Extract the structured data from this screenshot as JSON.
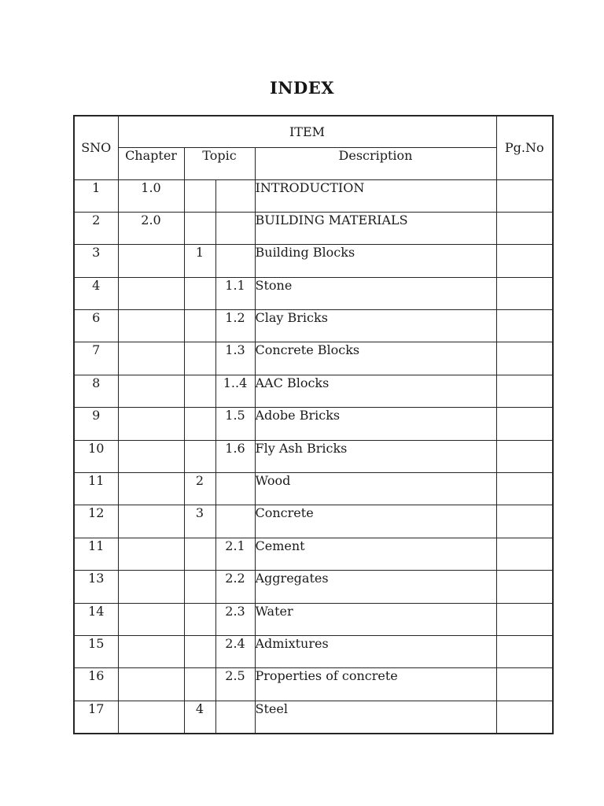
{
  "page": {
    "title": "INDEX"
  },
  "table": {
    "headers": {
      "sno": "SNO",
      "item": "ITEM",
      "chapter": "Chapter",
      "topic": "Topic",
      "description": "Description",
      "pgno": "Pg.No"
    },
    "rows": [
      {
        "sno": "1",
        "chapter": "1.0",
        "topic1": "",
        "topic2": "",
        "description": "INTRODUCTION",
        "pgno": ""
      },
      {
        "sno": "2",
        "chapter": "2.0",
        "topic1": "",
        "topic2": "",
        "description": "BUILDING MATERIALS",
        "pgno": ""
      },
      {
        "sno": "3",
        "chapter": "",
        "topic1": "1",
        "topic2": "",
        "description": "Building Blocks",
        "pgno": ""
      },
      {
        "sno": "4",
        "chapter": "",
        "topic1": "",
        "topic2": "1.1",
        "description": "Stone",
        "pgno": ""
      },
      {
        "sno": "6",
        "chapter": "",
        "topic1": "",
        "topic2": "1.2",
        "description": "Clay Bricks",
        "pgno": ""
      },
      {
        "sno": "7",
        "chapter": "",
        "topic1": "",
        "topic2": "1.3",
        "description": "Concrete Blocks",
        "pgno": ""
      },
      {
        "sno": "8",
        "chapter": "",
        "topic1": "",
        "topic2": "1..4",
        "description": "AAC Blocks",
        "pgno": ""
      },
      {
        "sno": "9",
        "chapter": "",
        "topic1": "",
        "topic2": "1.5",
        "description": "Adobe Bricks",
        "pgno": ""
      },
      {
        "sno": "10",
        "chapter": "",
        "topic1": "",
        "topic2": "1.6",
        "description": "Fly Ash Bricks",
        "pgno": ""
      },
      {
        "sno": "11",
        "chapter": "",
        "topic1": "2",
        "topic2": "",
        "description": "Wood",
        "pgno": ""
      },
      {
        "sno": "12",
        "chapter": "",
        "topic1": "3",
        "topic2": "",
        "description": "Concrete",
        "pgno": ""
      },
      {
        "sno": "11",
        "chapter": "",
        "topic1": "",
        "topic2": "2.1",
        "description": "Cement",
        "pgno": ""
      },
      {
        "sno": "13",
        "chapter": "",
        "topic1": "",
        "topic2": "2.2",
        "description": "Aggregates",
        "pgno": ""
      },
      {
        "sno": "14",
        "chapter": "",
        "topic1": "",
        "topic2": "2.3",
        "description": "Water",
        "pgno": ""
      },
      {
        "sno": "15",
        "chapter": "",
        "topic1": "",
        "topic2": "2.4",
        "description": "Admixtures",
        "pgno": ""
      },
      {
        "sno": "16",
        "chapter": "",
        "topic1": "",
        "topic2": "2.5",
        "description": "Properties of concrete",
        "pgno": ""
      },
      {
        "sno": "17",
        "chapter": "",
        "topic1": "4",
        "topic2": "",
        "description": "Steel",
        "pgno": ""
      }
    ]
  },
  "colors": {
    "background": "#ffffff",
    "text": "#1b1b1b",
    "border": "#262626"
  }
}
